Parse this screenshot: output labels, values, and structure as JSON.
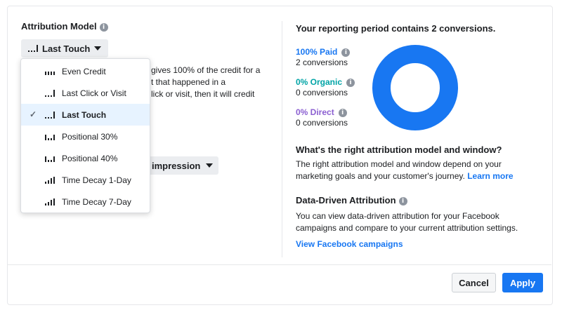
{
  "attribution": {
    "title": "Attribution Model",
    "selected": "Last Touch"
  },
  "menu": {
    "items": [
      {
        "label": "Even Credit",
        "icon": "even-credit-bars-icon"
      },
      {
        "label": "Last Click or Visit",
        "icon": "last-click-bars-icon"
      },
      {
        "label": "Last Touch",
        "icon": "last-touch-bars-icon",
        "selected": true
      },
      {
        "label": "Positional 30%",
        "icon": "positional-bars-icon"
      },
      {
        "label": "Positional 40%",
        "icon": "positional-bars-icon"
      },
      {
        "label": "Time Decay 1-Day",
        "icon": "time-decay-bars-icon"
      },
      {
        "label": "Time Decay 7-Day",
        "icon": "time-decay-bars-icon"
      }
    ]
  },
  "description": {
    "line1": "gives 100% of the credit for a",
    "line2": "t that happened in a",
    "line3": "lick or visit, then it will credit"
  },
  "window_dropdown": {
    "label": "impression"
  },
  "report": {
    "title": "Your reporting period contains 2 conversions.",
    "paid": {
      "label": "100% Paid",
      "sub": "2 conversions",
      "percent": 100,
      "color": "#1877f2"
    },
    "organic": {
      "label": "0% Organic",
      "sub": "0 conversions",
      "percent": 0,
      "color": "#00a4a6"
    },
    "direct": {
      "label": "0% Direct",
      "sub": "0 conversions",
      "percent": 0,
      "color": "#8b5fd1"
    }
  },
  "question": {
    "title": "What's the right attribution model and window?",
    "text": "The right attribution model and window depend on your marketing goals and your customer's journey.",
    "link": "Learn more"
  },
  "data_driven": {
    "title": "Data-Driven Attribution",
    "text": "You can view data-driven attribution for your Facebook campaigns and compare to your current attribution settings.",
    "link": "View Facebook campaigns"
  },
  "footer": {
    "cancel": "Cancel",
    "apply": "Apply"
  }
}
